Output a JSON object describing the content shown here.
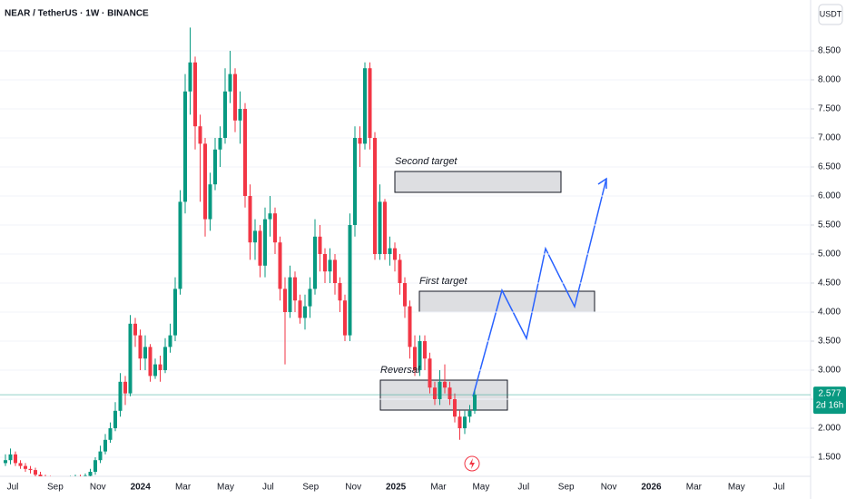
{
  "chart_data": {
    "type": "candlestick",
    "title": "NEAR / TetherUS · 1W · BINANCE",
    "currency": "USDT",
    "up_color": "#089981",
    "down_color": "#f23645",
    "time_labels": [
      "Jul",
      "Sep",
      "Nov",
      "2024",
      "Mar",
      "May",
      "Jul",
      "Sep",
      "Nov",
      "2025",
      "Mar",
      "May",
      "Jul",
      "Sep",
      "Nov",
      "2026",
      "Mar",
      "May",
      "Jul"
    ],
    "ylim": [
      1.172,
      9.375
    ],
    "yticks": [
      {
        "value": 1.5,
        "label": "1.500"
      },
      {
        "value": 2,
        "label": "2.000"
      },
      {
        "value": 2.5,
        "label": "2.500"
      },
      {
        "value": 3,
        "label": "3.000"
      },
      {
        "value": 3.5,
        "label": "3.500"
      },
      {
        "value": 4,
        "label": "4.000"
      },
      {
        "value": 4.5,
        "label": "4.500"
      },
      {
        "value": 5,
        "label": "5.000"
      },
      {
        "value": 5.5,
        "label": "5.500"
      },
      {
        "value": 6,
        "label": "6.000"
      },
      {
        "value": 6.5,
        "label": "6.500"
      },
      {
        "value": 7,
        "label": "7.000"
      },
      {
        "value": 7.5,
        "label": "7.500"
      },
      {
        "value": 8,
        "label": "8.000"
      },
      {
        "value": 8.5,
        "label": "8.500"
      }
    ],
    "last_price": 2.577,
    "countdown": "2d 16h",
    "annotations": [
      "Second target",
      "First target",
      "Reversal"
    ],
    "open": [
      1.4,
      1.45,
      1.55,
      1.4,
      1.35,
      1.3,
      1.28,
      1.2,
      1.15,
      1.12,
      1.1,
      1.08,
      1.05,
      1.1,
      1.12,
      1.15,
      1.1,
      1.18,
      1.25,
      1.45,
      1.6,
      1.8,
      2.0,
      2.3,
      2.8,
      2.6,
      3.8,
      3.6,
      3.2,
      3.4,
      2.9,
      3.1,
      3.0,
      3.4,
      3.6,
      4.4,
      5.9,
      7.8,
      8.3,
      7.2,
      6.9,
      5.6,
      6.2,
      6.8,
      7.0,
      7.8,
      8.1,
      7.3,
      7.5,
      6.0,
      5.2,
      5.4,
      4.8,
      5.6,
      5.7,
      5.2,
      4.4,
      4.0,
      4.6,
      4.2,
      3.9,
      4.1,
      4.4,
      5.3,
      5.0,
      4.7,
      4.9,
      4.5,
      4.2,
      3.6,
      5.5,
      7.0,
      6.9,
      8.2,
      7.0,
      5.0,
      5.9,
      5.0,
      5.1,
      4.9,
      4.5,
      4.1,
      3.4,
      3.0,
      3.5,
      3.2,
      2.7,
      2.5,
      2.8,
      2.7,
      2.5,
      2.2,
      2.0,
      2.2,
      2.3
    ],
    "high": [
      1.55,
      1.65,
      1.6,
      1.45,
      1.4,
      1.35,
      1.32,
      1.25,
      1.2,
      1.18,
      1.15,
      1.12,
      1.15,
      1.18,
      1.2,
      1.2,
      1.22,
      1.3,
      1.5,
      1.7,
      1.9,
      2.1,
      2.45,
      2.95,
      2.9,
      3.95,
      3.9,
      3.7,
      3.6,
      3.45,
      3.2,
      3.25,
      3.55,
      3.8,
      4.6,
      6.1,
      8.1,
      8.9,
      8.4,
      7.4,
      7.0,
      6.4,
      7.0,
      7.2,
      8.2,
      8.5,
      8.2,
      7.8,
      7.6,
      6.2,
      5.6,
      5.5,
      5.8,
      6.0,
      5.8,
      5.3,
      4.6,
      4.8,
      4.7,
      4.3,
      4.3,
      4.6,
      5.6,
      5.5,
      5.1,
      5.1,
      5.0,
      4.6,
      4.3,
      5.7,
      7.2,
      7.2,
      8.3,
      8.3,
      7.1,
      6.2,
      5.95,
      5.3,
      5.2,
      5.0,
      4.6,
      4.2,
      3.6,
      3.6,
      3.6,
      3.3,
      2.8,
      3.0,
      3.1,
      2.8,
      2.6,
      2.3,
      2.3,
      2.4,
      2.65
    ],
    "low": [
      1.35,
      1.38,
      1.35,
      1.3,
      1.25,
      1.22,
      1.15,
      1.1,
      1.08,
      1.05,
      1.02,
      1.0,
      1.02,
      1.05,
      1.08,
      1.05,
      1.08,
      1.15,
      1.2,
      1.4,
      1.55,
      1.75,
      1.95,
      2.2,
      2.4,
      2.55,
      3.4,
      3.0,
      3.0,
      2.8,
      2.85,
      2.8,
      2.95,
      3.3,
      3.5,
      4.3,
      5.7,
      7.4,
      6.8,
      5.9,
      5.3,
      5.4,
      6.1,
      6.5,
      6.9,
      7.6,
      7.1,
      6.9,
      5.8,
      4.9,
      4.9,
      4.6,
      4.6,
      5.3,
      5.0,
      4.2,
      3.1,
      3.9,
      4.0,
      3.8,
      3.7,
      3.9,
      4.3,
      4.7,
      4.5,
      4.5,
      4.3,
      4.0,
      3.5,
      3.5,
      5.3,
      6.5,
      6.8,
      6.8,
      4.9,
      4.9,
      4.9,
      4.8,
      4.7,
      4.3,
      3.9,
      3.2,
      2.9,
      2.9,
      3.0,
      2.6,
      2.4,
      2.4,
      2.6,
      2.4,
      2.1,
      1.8,
      1.9,
      2.1,
      2.25
    ],
    "close": [
      1.45,
      1.55,
      1.4,
      1.35,
      1.3,
      1.28,
      1.2,
      1.15,
      1.12,
      1.1,
      1.08,
      1.05,
      1.1,
      1.12,
      1.15,
      1.1,
      1.18,
      1.25,
      1.45,
      1.6,
      1.8,
      2.0,
      2.3,
      2.8,
      2.6,
      3.8,
      3.6,
      3.2,
      3.4,
      2.9,
      3.1,
      3.0,
      3.4,
      3.6,
      4.4,
      5.9,
      7.8,
      8.3,
      7.2,
      6.9,
      5.6,
      6.2,
      6.8,
      7.0,
      7.8,
      8.1,
      7.3,
      7.5,
      6.0,
      5.2,
      5.4,
      4.8,
      5.6,
      5.7,
      5.2,
      4.4,
      4.0,
      4.6,
      4.2,
      3.9,
      4.1,
      4.4,
      5.3,
      5.0,
      4.7,
      4.9,
      4.5,
      4.2,
      3.6,
      5.5,
      7.0,
      6.9,
      8.2,
      7.0,
      5.0,
      5.9,
      5.0,
      5.1,
      4.9,
      4.5,
      4.1,
      3.4,
      3.0,
      3.5,
      3.2,
      2.7,
      2.5,
      2.8,
      2.7,
      2.5,
      2.2,
      2.0,
      2.2,
      2.3,
      2.577
    ]
  }
}
